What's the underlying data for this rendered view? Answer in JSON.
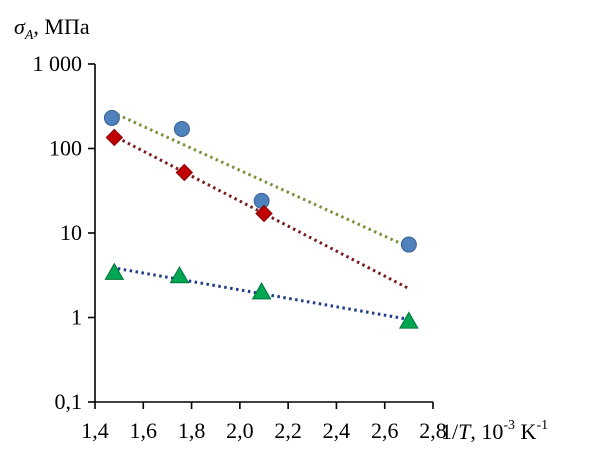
{
  "chart_data": {
    "type": "scatter",
    "ylabel": {
      "sym": "σ",
      "sub": "A",
      "rest": ", МПа"
    },
    "xlabel": {
      "pre": "1/",
      "sym": "T",
      "mid": ", 10",
      "sup1": "-3",
      "unit": " K",
      "sup2": "-1"
    },
    "x_range": [
      1.4,
      2.8
    ],
    "y_range": [
      0.1,
      1000
    ],
    "y_scale": "log",
    "x_ticks": [
      1.4,
      1.6,
      1.8,
      2.0,
      2.2,
      2.4,
      2.6,
      2.8
    ],
    "x_tick_labels": [
      "1,4",
      "1,6",
      "1,8",
      "2,0",
      "2,2",
      "2,4",
      "2,6",
      "2,8"
    ],
    "y_ticks": [
      0.1,
      1,
      10,
      100,
      1000
    ],
    "y_tick_labels": [
      "0,1",
      "1",
      "10",
      "100",
      "1 000"
    ],
    "grid": false,
    "legend": false,
    "series": [
      {
        "marker": "circle",
        "color": "#4f81bd",
        "x": [
          1.47,
          1.76,
          2.09,
          2.7
        ],
        "y": [
          230,
          170,
          24,
          7.3
        ],
        "trendline": {
          "x": [
            1.47,
            2.7
          ],
          "y": [
            270,
            6.8
          ],
          "color": "#77933c"
        }
      },
      {
        "marker": "diamond",
        "color": "#c00000",
        "x": [
          1.48,
          1.77,
          2.1
        ],
        "y": [
          135,
          52,
          17
        ],
        "trendline": {
          "x": [
            1.47,
            2.7
          ],
          "y": [
            145,
            2.2
          ],
          "color": "#7b1c1c"
        }
      },
      {
        "marker": "triangle",
        "color": "#00a651",
        "x": [
          1.48,
          1.75,
          2.09,
          2.7
        ],
        "y": [
          3.4,
          3.1,
          2.0,
          0.9
        ],
        "trendline": {
          "x": [
            1.47,
            2.7
          ],
          "y": [
            3.9,
            0.95
          ],
          "color": "#1f3c88"
        }
      }
    ]
  }
}
